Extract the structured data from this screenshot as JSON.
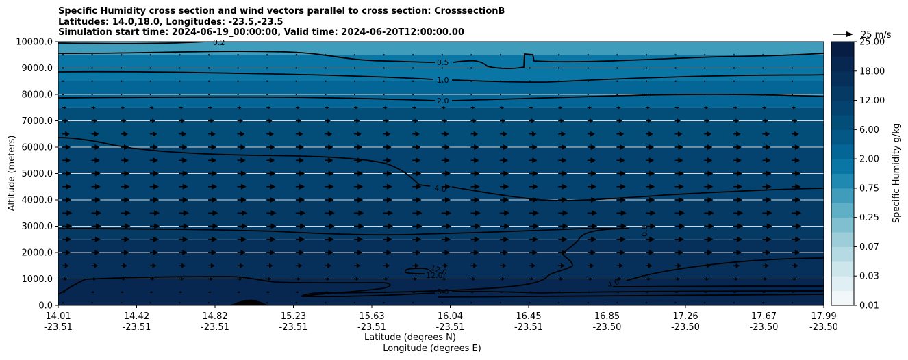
{
  "chart_data": {
    "type": "contour",
    "title_lines": [
      "Specific Humidity cross section and wind vectors parallel to cross section: CrosssectionB",
      "Latitudes: 14.0,18.0, Longitudes: -23.5,-23.5",
      "Simulation start time: 2024-06-19_00:00:00, Valid time: 2024-06-20T12:00:00.00"
    ],
    "ylabel": "Altitude (meters)",
    "xlabel_1": "Latitude (degrees N)",
    "xlabel_2": "Longitude (degrees E)",
    "ylim": [
      0,
      10000
    ],
    "y_ticks": [
      "0.0",
      "1000.0",
      "2000.0",
      "3000.0",
      "4000.0",
      "5000.0",
      "6000.0",
      "7000.0",
      "8000.0",
      "9000.0",
      "10000.0"
    ],
    "x_ticks": [
      {
        "lat": "14.01",
        "lon": "-23.51"
      },
      {
        "lat": "14.42",
        "lon": "-23.51"
      },
      {
        "lat": "14.82",
        "lon": "-23.51"
      },
      {
        "lat": "15.23",
        "lon": "-23.51"
      },
      {
        "lat": "15.63",
        "lon": "-23.51"
      },
      {
        "lat": "16.04",
        "lon": "-23.51"
      },
      {
        "lat": "16.45",
        "lon": "-23.51"
      },
      {
        "lat": "16.85",
        "lon": "-23.50"
      },
      {
        "lat": "17.26",
        "lon": "-23.50"
      },
      {
        "lat": "17.67",
        "lon": "-23.50"
      },
      {
        "lat": "17.99",
        "lon": "-23.50"
      }
    ],
    "colorbar": {
      "label": "Specific Humidity g/kg",
      "ticks": [
        "0.01",
        "0.03",
        "0.07",
        "0.25",
        "0.75",
        "2.00",
        "6.00",
        "12.00",
        "18.00",
        "25.00"
      ]
    },
    "quiver_key": "25 m/s",
    "contour_labels": [
      "0.2",
      "0.5",
      "1.0",
      "2.0",
      "4.0",
      "8.0",
      "12.0",
      "12.0",
      "4.0",
      "0.8"
    ],
    "humidity_profile": [
      {
        "alt": 10000,
        "q": 0.25
      },
      {
        "alt": 9500,
        "q": 0.5
      },
      {
        "alt": 8500,
        "q": 1.0
      },
      {
        "alt": 7500,
        "q": 2.0
      },
      {
        "alt": 6000,
        "q": 3.5
      },
      {
        "alt": 4000,
        "q": 6.0
      },
      {
        "alt": 2500,
        "q": 9.0
      },
      {
        "alt": 1000,
        "q": 12.0
      },
      {
        "alt": 0,
        "q": 15.0
      }
    ],
    "wind_levels": [
      {
        "alt": 100,
        "speed": 1
      },
      {
        "alt": 500,
        "speed": 4
      },
      {
        "alt": 1000,
        "speed": 6
      },
      {
        "alt": 1500,
        "speed": 8
      },
      {
        "alt": 2000,
        "speed": 10
      },
      {
        "alt": 2500,
        "speed": 11
      },
      {
        "alt": 3000,
        "speed": 12
      },
      {
        "alt": 3500,
        "speed": 12
      },
      {
        "alt": 4000,
        "speed": 11
      },
      {
        "alt": 4500,
        "speed": 11
      },
      {
        "alt": 5000,
        "speed": 11
      },
      {
        "alt": 5500,
        "speed": 10
      },
      {
        "alt": 6000,
        "speed": 10
      },
      {
        "alt": 6500,
        "speed": 9
      },
      {
        "alt": 7000,
        "speed": 7
      },
      {
        "alt": 7500,
        "speed": 5
      },
      {
        "alt": 8000,
        "speed": 3
      },
      {
        "alt": 8500,
        "speed": 2
      },
      {
        "alt": 9000,
        "speed": 1
      },
      {
        "alt": 9500,
        "speed": 0.5
      }
    ]
  }
}
